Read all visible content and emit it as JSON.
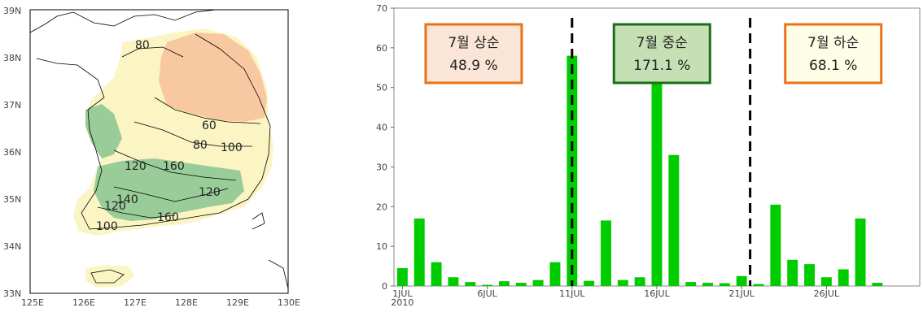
{
  "map": {
    "lat_labels": [
      "39N",
      "38N",
      "37N",
      "36N",
      "35N",
      "34N",
      "33N"
    ],
    "lon_labels": [
      "125E",
      "126E",
      "127E",
      "128E",
      "129E",
      "130E"
    ],
    "contour_labels": [
      "80",
      "60",
      "80",
      "100",
      "120",
      "160",
      "140",
      "120",
      "120",
      "100",
      "160"
    ],
    "colors": {
      "low": "#f8c9a0",
      "mid": "#fbf5c4",
      "high": "#99cc99"
    }
  },
  "chart_data": {
    "type": "bar",
    "ylim": [
      0,
      70
    ],
    "yticks": [
      "0",
      "10",
      "20",
      "30",
      "40",
      "50",
      "60",
      "70"
    ],
    "xticks": [
      "1JUL\n2010",
      "6JUL",
      "11JUL",
      "16JUL",
      "21JUL",
      "26JUL"
    ],
    "x": [
      1,
      2,
      3,
      4,
      5,
      6,
      7,
      8,
      9,
      10,
      11,
      12,
      13,
      14,
      15,
      16,
      17,
      18,
      19,
      20,
      21,
      22,
      23,
      24,
      25,
      26,
      27,
      28,
      29,
      30,
      31
    ],
    "values": [
      4.5,
      17,
      6,
      2.2,
      1,
      0.3,
      1.2,
      0.8,
      1.5,
      6,
      58,
      1.3,
      16.5,
      1.5,
      2.2,
      52,
      33,
      1,
      0.8,
      0.7,
      2.5,
      0.5,
      20.5,
      6.6,
      5.5,
      2.2,
      4.2,
      17,
      0.8,
      0,
      0
    ],
    "bar_color": "#00cc00",
    "dividers": [
      11.0,
      21.5
    ],
    "annotations": [
      {
        "title": "7월 상순",
        "value": "48.9 %",
        "fill": "#fbe5d6",
        "border": "#e8731a"
      },
      {
        "title": "7월 중순",
        "value": "171.1 %",
        "fill": "#c5e0b4",
        "border": "#1a6e1a"
      },
      {
        "title": "7월 하순",
        "value": "68.1 %",
        "fill": "#fefde6",
        "border": "#e8731a"
      }
    ]
  }
}
